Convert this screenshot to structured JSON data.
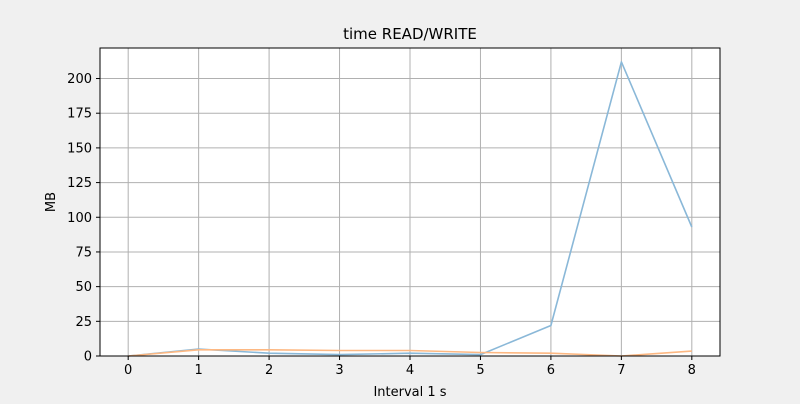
{
  "chart_data": {
    "type": "line",
    "title": "time READ/WRITE",
    "xlabel": "Interval 1 s",
    "ylabel": "MB",
    "x": [
      0,
      1,
      2,
      3,
      4,
      5,
      6,
      7,
      8
    ],
    "xlim": [
      -0.4,
      8.4
    ],
    "ylim": [
      0,
      222
    ],
    "xticks": [
      0,
      1,
      2,
      3,
      4,
      5,
      6,
      7,
      8
    ],
    "yticks": [
      0,
      25,
      50,
      75,
      100,
      125,
      150,
      175,
      200
    ],
    "grid": true,
    "series": [
      {
        "values": [
          0,
          5,
          2,
          1,
          2,
          1,
          22,
          212,
          93
        ],
        "color": "#8ab8d8"
      },
      {
        "values": [
          0,
          4.5,
          4.5,
          4,
          4,
          2.5,
          2,
          0,
          3.5
        ],
        "color": "#fdb882"
      }
    ]
  }
}
